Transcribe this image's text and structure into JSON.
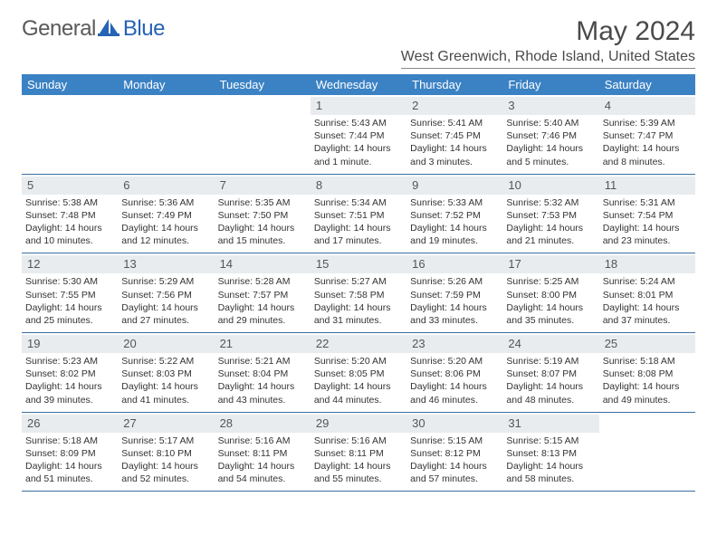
{
  "logo": {
    "text_general": "General",
    "text_blue": "Blue"
  },
  "title": "May 2024",
  "location": "West Greenwich, Rhode Island, United States",
  "colors": {
    "header_bg": "#3b82c4",
    "header_text": "#ffffff",
    "daynum_bg": "#e8ecef",
    "week_border": "#3b6fa0",
    "text": "#333333",
    "title_text": "#4a4a4a",
    "logo_gray": "#5a5a5a",
    "logo_blue": "#2563b5"
  },
  "day_names": [
    "Sunday",
    "Monday",
    "Tuesday",
    "Wednesday",
    "Thursday",
    "Friday",
    "Saturday"
  ],
  "weeks": [
    [
      {
        "empty": true
      },
      {
        "empty": true
      },
      {
        "empty": true
      },
      {
        "n": "1",
        "sr": "5:43 AM",
        "ss": "7:44 PM",
        "dl": "14 hours and 1 minute."
      },
      {
        "n": "2",
        "sr": "5:41 AM",
        "ss": "7:45 PM",
        "dl": "14 hours and 3 minutes."
      },
      {
        "n": "3",
        "sr": "5:40 AM",
        "ss": "7:46 PM",
        "dl": "14 hours and 5 minutes."
      },
      {
        "n": "4",
        "sr": "5:39 AM",
        "ss": "7:47 PM",
        "dl": "14 hours and 8 minutes."
      }
    ],
    [
      {
        "n": "5",
        "sr": "5:38 AM",
        "ss": "7:48 PM",
        "dl": "14 hours and 10 minutes."
      },
      {
        "n": "6",
        "sr": "5:36 AM",
        "ss": "7:49 PM",
        "dl": "14 hours and 12 minutes."
      },
      {
        "n": "7",
        "sr": "5:35 AM",
        "ss": "7:50 PM",
        "dl": "14 hours and 15 minutes."
      },
      {
        "n": "8",
        "sr": "5:34 AM",
        "ss": "7:51 PM",
        "dl": "14 hours and 17 minutes."
      },
      {
        "n": "9",
        "sr": "5:33 AM",
        "ss": "7:52 PM",
        "dl": "14 hours and 19 minutes."
      },
      {
        "n": "10",
        "sr": "5:32 AM",
        "ss": "7:53 PM",
        "dl": "14 hours and 21 minutes."
      },
      {
        "n": "11",
        "sr": "5:31 AM",
        "ss": "7:54 PM",
        "dl": "14 hours and 23 minutes."
      }
    ],
    [
      {
        "n": "12",
        "sr": "5:30 AM",
        "ss": "7:55 PM",
        "dl": "14 hours and 25 minutes."
      },
      {
        "n": "13",
        "sr": "5:29 AM",
        "ss": "7:56 PM",
        "dl": "14 hours and 27 minutes."
      },
      {
        "n": "14",
        "sr": "5:28 AM",
        "ss": "7:57 PM",
        "dl": "14 hours and 29 minutes."
      },
      {
        "n": "15",
        "sr": "5:27 AM",
        "ss": "7:58 PM",
        "dl": "14 hours and 31 minutes."
      },
      {
        "n": "16",
        "sr": "5:26 AM",
        "ss": "7:59 PM",
        "dl": "14 hours and 33 minutes."
      },
      {
        "n": "17",
        "sr": "5:25 AM",
        "ss": "8:00 PM",
        "dl": "14 hours and 35 minutes."
      },
      {
        "n": "18",
        "sr": "5:24 AM",
        "ss": "8:01 PM",
        "dl": "14 hours and 37 minutes."
      }
    ],
    [
      {
        "n": "19",
        "sr": "5:23 AM",
        "ss": "8:02 PM",
        "dl": "14 hours and 39 minutes."
      },
      {
        "n": "20",
        "sr": "5:22 AM",
        "ss": "8:03 PM",
        "dl": "14 hours and 41 minutes."
      },
      {
        "n": "21",
        "sr": "5:21 AM",
        "ss": "8:04 PM",
        "dl": "14 hours and 43 minutes."
      },
      {
        "n": "22",
        "sr": "5:20 AM",
        "ss": "8:05 PM",
        "dl": "14 hours and 44 minutes."
      },
      {
        "n": "23",
        "sr": "5:20 AM",
        "ss": "8:06 PM",
        "dl": "14 hours and 46 minutes."
      },
      {
        "n": "24",
        "sr": "5:19 AM",
        "ss": "8:07 PM",
        "dl": "14 hours and 48 minutes."
      },
      {
        "n": "25",
        "sr": "5:18 AM",
        "ss": "8:08 PM",
        "dl": "14 hours and 49 minutes."
      }
    ],
    [
      {
        "n": "26",
        "sr": "5:18 AM",
        "ss": "8:09 PM",
        "dl": "14 hours and 51 minutes."
      },
      {
        "n": "27",
        "sr": "5:17 AM",
        "ss": "8:10 PM",
        "dl": "14 hours and 52 minutes."
      },
      {
        "n": "28",
        "sr": "5:16 AM",
        "ss": "8:11 PM",
        "dl": "14 hours and 54 minutes."
      },
      {
        "n": "29",
        "sr": "5:16 AM",
        "ss": "8:11 PM",
        "dl": "14 hours and 55 minutes."
      },
      {
        "n": "30",
        "sr": "5:15 AM",
        "ss": "8:12 PM",
        "dl": "14 hours and 57 minutes."
      },
      {
        "n": "31",
        "sr": "5:15 AM",
        "ss": "8:13 PM",
        "dl": "14 hours and 58 minutes."
      },
      {
        "empty": true
      }
    ]
  ],
  "labels": {
    "sunrise": "Sunrise: ",
    "sunset": "Sunset: ",
    "daylight": "Daylight: "
  }
}
